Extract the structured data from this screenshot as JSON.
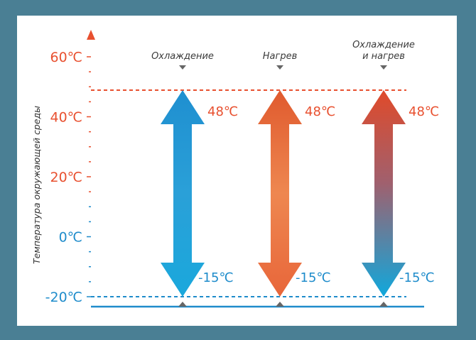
{
  "axis": {
    "title": "Температура окружающей среды",
    "ticks": [
      {
        "label": "60℃",
        "value": 60,
        "color": "#e8502f"
      },
      {
        "label": "40℃",
        "value": 40,
        "color": "#e8502f"
      },
      {
        "label": "20℃",
        "value": 20,
        "color": "#e8502f"
      },
      {
        "label": "0℃",
        "value": 0,
        "color": "#1f8ccb"
      },
      {
        "label": "-20℃",
        "value": -20,
        "color": "#1f8ccb"
      }
    ],
    "max_line": 48,
    "min_line": -20,
    "min_line_color": "#1f8ccb",
    "max_line_color": "#e8502f"
  },
  "modes": [
    {
      "label_line1": "Охлаждение",
      "label_line2": "",
      "top_label": "48℃",
      "bottom_label": "-15℃",
      "gradient": [
        "#1f8fd0",
        "#1aa8dc"
      ]
    },
    {
      "label_line1": "Нагрев",
      "label_line2": "",
      "top_label": "48℃",
      "bottom_label": "-15℃",
      "gradient": [
        "#e05a2e",
        "#f08a4d"
      ]
    },
    {
      "label_line1": "Охлаждение",
      "label_line2": "и нагрев",
      "top_label": "48℃",
      "bottom_label": "-15℃",
      "gradient": [
        "#e04a2a",
        "#10a8dc"
      ]
    }
  ],
  "colors": {
    "frame": "#4a7f94",
    "hot": "#e8502f",
    "cold": "#1f8ccb"
  }
}
